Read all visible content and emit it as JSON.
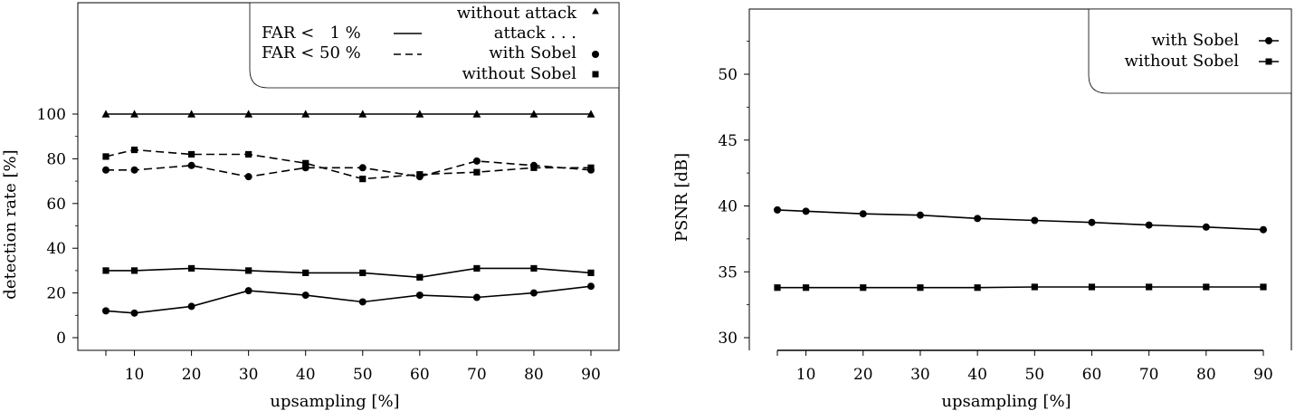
{
  "chart_data": [
    {
      "type": "line",
      "xlabel": "upsampling [%]",
      "ylabel": "detection rate [%]",
      "x": [
        5,
        10,
        20,
        30,
        40,
        50,
        60,
        70,
        80,
        90
      ],
      "x_tick_labels": [
        "10",
        "20",
        "30",
        "40",
        "50",
        "60",
        "70",
        "80",
        "90"
      ],
      "ylim": [
        -5,
        150
      ],
      "y_ticks": [
        0,
        20,
        40,
        60,
        80,
        100
      ],
      "grid": false,
      "legend_position": "top-right",
      "legend": {
        "far1_label": "FAR <   1 %",
        "far50_label": "FAR < 50 %",
        "without_attack_label": "without attack",
        "attack_label": "attack . . .",
        "with_sobel_label": "with Sobel",
        "without_sobel_label": "without Sobel"
      },
      "series": [
        {
          "name": "without attack",
          "marker": "triangle",
          "line": "solid",
          "values": [
            100,
            100,
            100,
            100,
            100,
            100,
            100,
            100,
            100,
            100
          ]
        },
        {
          "name": "with Sobel",
          "marker": "circle",
          "line": "dashed",
          "values": [
            75,
            75,
            77,
            72,
            76,
            76,
            72,
            79,
            77,
            75
          ]
        },
        {
          "name": "without Sobel",
          "marker": "square",
          "line": "dashed",
          "values": [
            81,
            84,
            82,
            82,
            78,
            71,
            73,
            74,
            76,
            76
          ]
        },
        {
          "name": "without Sobel",
          "marker": "square",
          "line": "solid",
          "values": [
            30,
            30,
            31,
            30,
            29,
            29,
            27,
            31,
            31,
            29
          ]
        },
        {
          "name": "with Sobel",
          "marker": "circle",
          "line": "solid",
          "values": [
            12,
            11,
            14,
            21,
            19,
            16,
            19,
            18,
            20,
            23
          ]
        }
      ]
    },
    {
      "type": "line",
      "xlabel": "upsampling [%]",
      "ylabel": "PSNR [dB]",
      "x": [
        5,
        10,
        20,
        30,
        40,
        50,
        60,
        70,
        80,
        90
      ],
      "x_tick_labels": [
        "10",
        "20",
        "30",
        "40",
        "50",
        "60",
        "70",
        "80",
        "90"
      ],
      "ylim": [
        29,
        55
      ],
      "y_ticks": [
        30,
        35,
        40,
        45,
        50
      ],
      "grid": false,
      "legend_position": "top-right",
      "series": [
        {
          "name": "with Sobel",
          "marker": "circle",
          "line": "solid",
          "values": [
            39.7,
            39.6,
            39.4,
            39.3,
            39.05,
            38.9,
            38.75,
            38.55,
            38.4,
            38.2
          ]
        },
        {
          "name": "without Sobel",
          "marker": "square",
          "line": "solid",
          "values": [
            33.8,
            33.8,
            33.8,
            33.8,
            33.8,
            33.85,
            33.85,
            33.85,
            33.85,
            33.85
          ]
        }
      ]
    }
  ]
}
